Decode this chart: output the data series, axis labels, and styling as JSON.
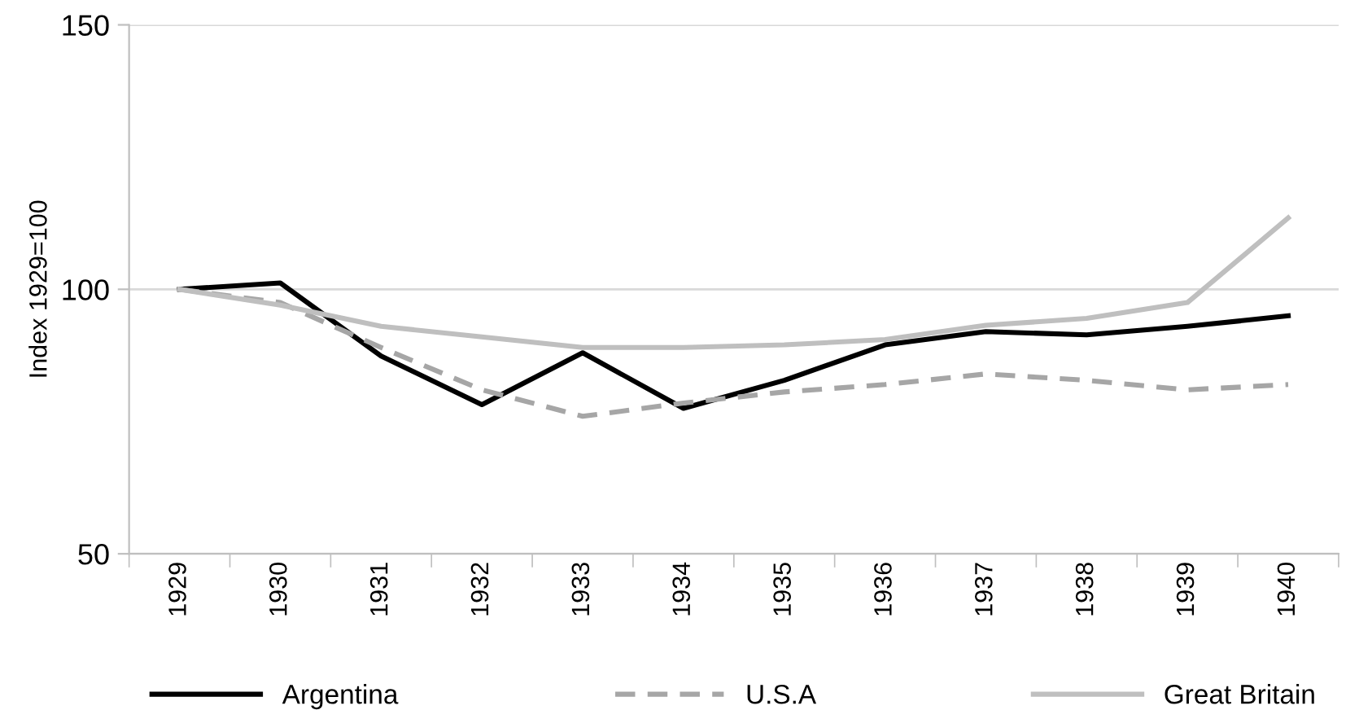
{
  "chart_data": {
    "type": "line",
    "ylabel": "Index 1929=100",
    "categories": [
      "1929",
      "1930",
      "1931",
      "1932",
      "1933",
      "1934",
      "1935",
      "1936",
      "1937",
      "1938",
      "1939",
      "1940"
    ],
    "series": [
      {
        "name": "Argentina",
        "color": "#000000",
        "line_style": "solid",
        "values": [
          100,
          101.2,
          87.4,
          78.2,
          88,
          77.5,
          82.8,
          89.5,
          92,
          91.4,
          93,
          95
        ]
      },
      {
        "name": "U.S.A",
        "color": "#a6a6a6",
        "line_style": "dashed",
        "values": [
          100,
          97.5,
          89,
          81,
          76,
          78.5,
          80.6,
          82,
          84,
          82.8,
          81,
          82
        ]
      },
      {
        "name": "Great Britain",
        "color": "#bfbfbf",
        "line_style": "solid",
        "values": [
          100,
          97,
          93,
          91,
          89,
          89,
          89.5,
          90.5,
          93.2,
          94.5,
          97.5,
          113.5
        ]
      }
    ],
    "ylim": [
      50,
      150
    ],
    "yticks": [
      50,
      100,
      150
    ],
    "grid": "y",
    "legend": "bottom"
  }
}
